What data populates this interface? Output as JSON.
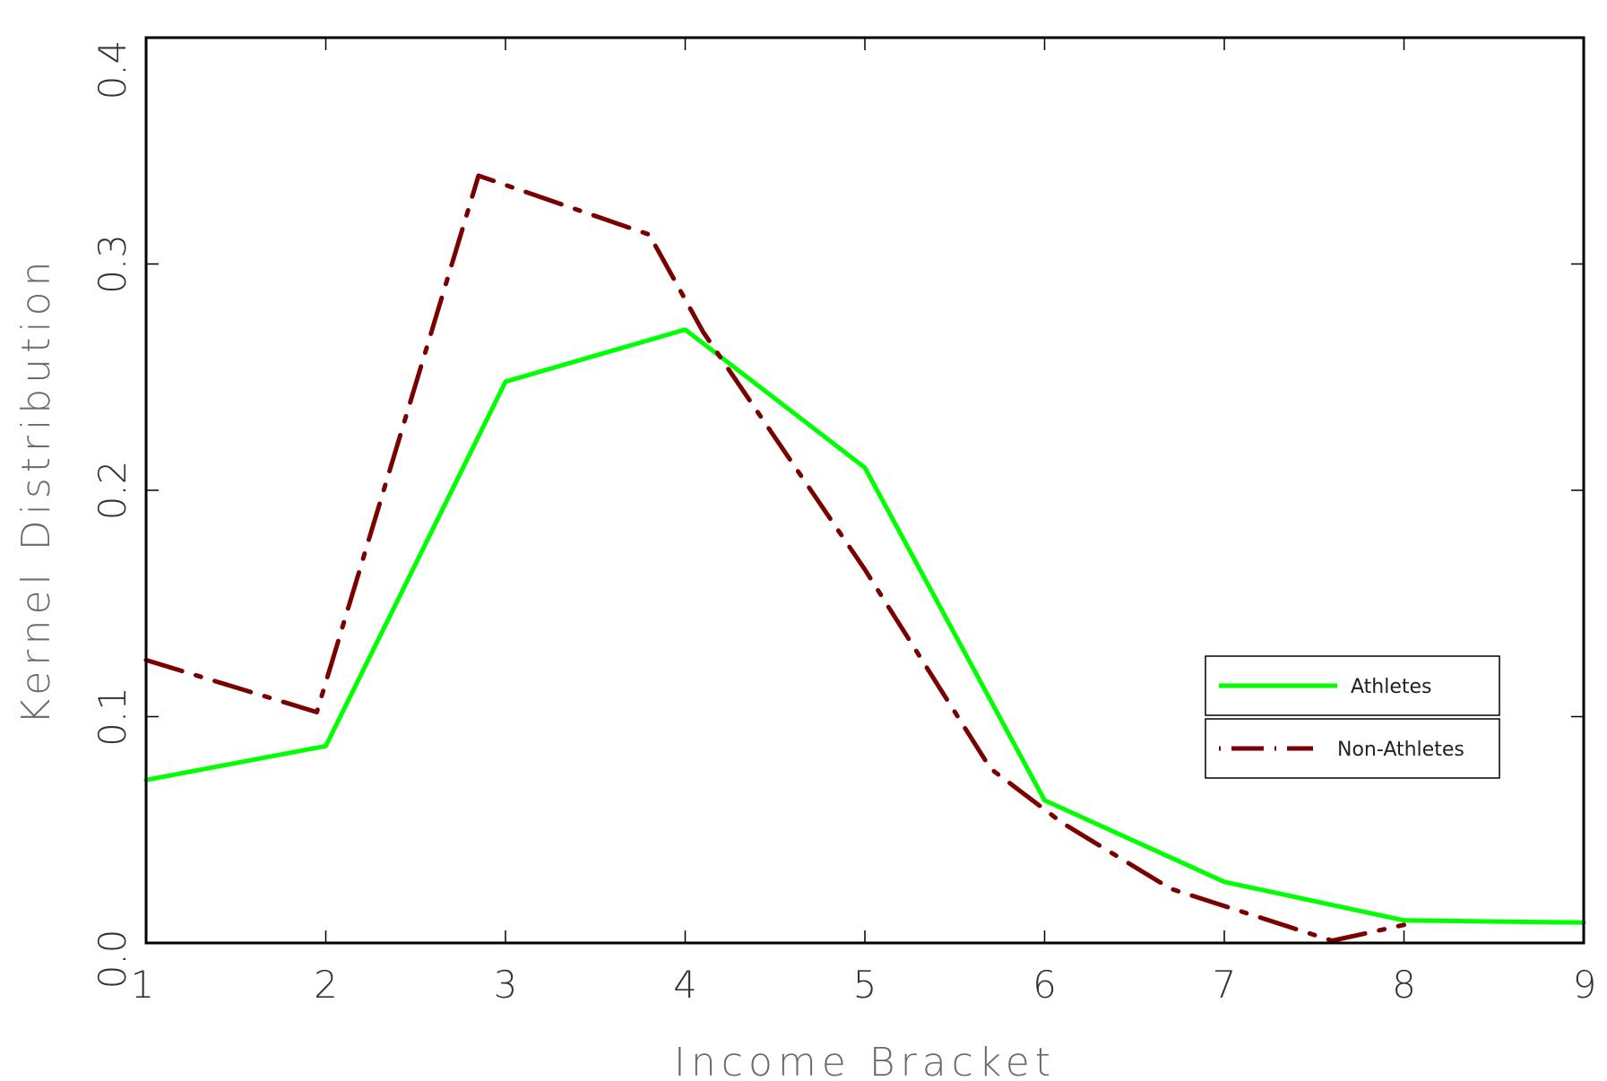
{
  "chart_data": {
    "type": "line",
    "title": "",
    "xlabel": "Income Bracket",
    "ylabel": "Kernel Distribution",
    "xlim": [
      1,
      9
    ],
    "ylim": [
      0,
      0.4
    ],
    "x_ticks": [
      1,
      2,
      3,
      4,
      5,
      6,
      7,
      8,
      9
    ],
    "y_ticks": [
      "0.0",
      "0.1",
      "0.2",
      "0.3",
      "0.4"
    ],
    "grid": false,
    "legend_position": "center-right",
    "series": [
      {
        "name": "Athletes",
        "color": "#00ff00",
        "style": "solid",
        "x": [
          1,
          2,
          3,
          4,
          5,
          6,
          7,
          8,
          9
        ],
        "y": [
          0.072,
          0.087,
          0.248,
          0.271,
          0.21,
          0.063,
          0.027,
          0.01,
          0.009
        ]
      },
      {
        "name": "Non-Athletes",
        "color": "#7a0000",
        "style": "dash-dot",
        "x": [
          1,
          1.95,
          2.85,
          3.8,
          4.1,
          5.0,
          5.7,
          6.1,
          6.7,
          7.6,
          8.0
        ],
        "y": [
          0.125,
          0.102,
          0.339,
          0.313,
          0.27,
          0.165,
          0.077,
          0.053,
          0.024,
          0.001,
          0.008
        ]
      }
    ]
  }
}
